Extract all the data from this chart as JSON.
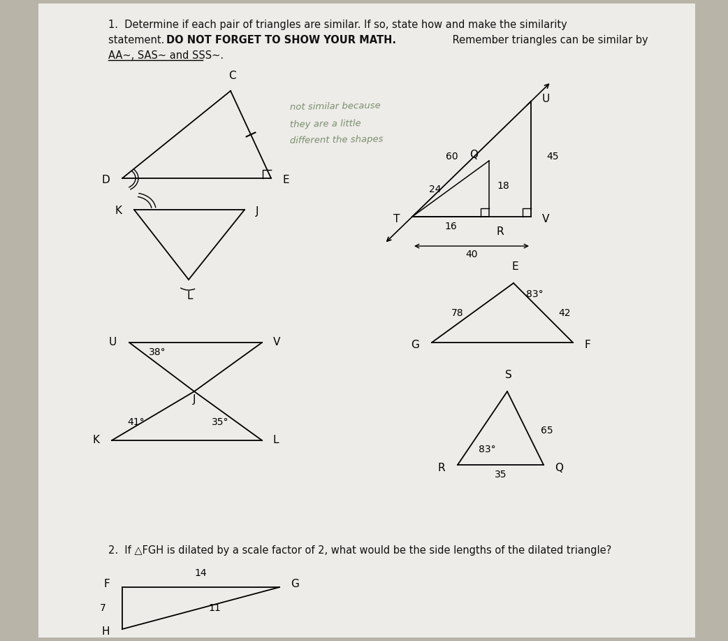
{
  "bg_color": "#b8b4a8",
  "paper_color": "#eeece8",
  "title_line1": "1.  Determine if each pair of triangles are similar. If so, state how and make the similarity",
  "title_line2": "statement. DO NOT FORGET TO SHOW YOUR MATH. Remember triangles can be similar by",
  "title_line2_normal": "statement. ",
  "title_line2_bold": "DO NOT FORGET TO SHOW YOUR MATH.",
  "title_line2_rest": " Remember triangles can be similar by",
  "title_line3": "AA~, SAS~ and SSS~.",
  "title2_line": "2.  If △FGH is dilated by a scale factor of 2, what would be the side lengths of the dilated triangle?",
  "hw_line1": "not similar because",
  "hw_line2": "they are a little",
  "hw_line3": "different the shapes",
  "font_size_title": 10.5,
  "font_size_labels": 11,
  "font_size_numbers": 10
}
